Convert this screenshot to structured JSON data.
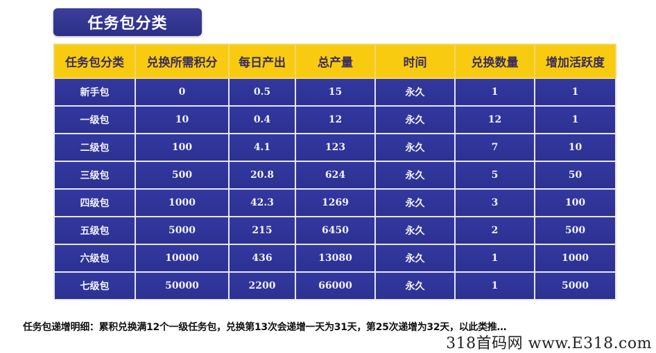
{
  "title": "任务包分类",
  "table": {
    "headers": [
      "任务包分类",
      "兑换所需积分",
      "每日产出",
      "总产量",
      "时间",
      "兑换数量",
      "增加活跃度"
    ],
    "rows": [
      [
        "新手包",
        "0",
        "0.5",
        "15",
        "永久",
        "1",
        "1"
      ],
      [
        "一级包",
        "10",
        "0.4",
        "12",
        "永久",
        "12",
        "1"
      ],
      [
        "二级包",
        "100",
        "4.1",
        "123",
        "永久",
        "7",
        "10"
      ],
      [
        "三级包",
        "500",
        "20.8",
        "624",
        "永久",
        "5",
        "50"
      ],
      [
        "四级包",
        "1000",
        "42.3",
        "1269",
        "永久",
        "3",
        "100"
      ],
      [
        "五级包",
        "5000",
        "215",
        "6450",
        "永久",
        "2",
        "500"
      ],
      [
        "六级包",
        "10000",
        "436",
        "13080",
        "永久",
        "1",
        "1000"
      ],
      [
        "七级包",
        "50000",
        "2200",
        "66000",
        "永久",
        "1",
        "5000"
      ]
    ]
  },
  "note": "任务包递增明细：累积兑换满12个一级任务包，兑换第13次会递增一天为31天，第25次递增为32天，以此类推…",
  "watermark": "318首码网 www.E318.com",
  "colors": {
    "header_bg": "#f8cb10",
    "header_text": "#3b2d5c",
    "cell_bg": "#2f3497",
    "cell_text": "#f2f2f8",
    "title_bg": "#2f338c"
  }
}
